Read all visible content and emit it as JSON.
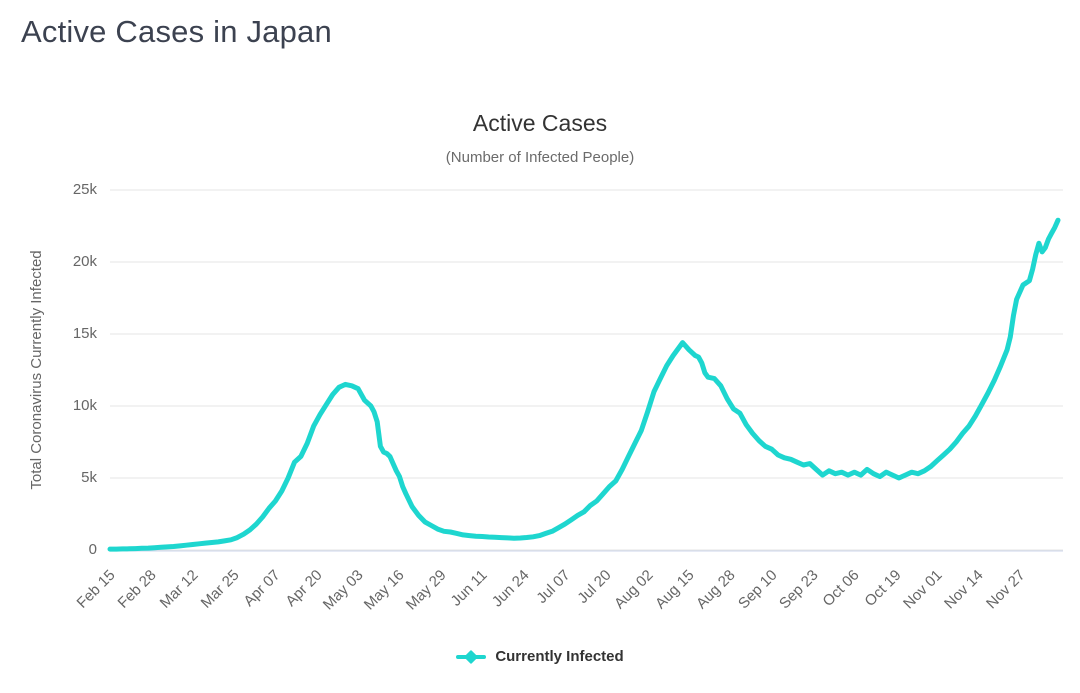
{
  "page": {
    "heading": "Active Cases in Japan"
  },
  "chart_data": {
    "type": "line",
    "title": "Active Cases",
    "subtitle": "(Number of Infected People)",
    "ylabel": "Total Coronavirus Currently Infected",
    "xlabel": "",
    "ylim": [
      0,
      25000
    ],
    "ytick_values": [
      0,
      5000,
      10000,
      15000,
      20000,
      25000
    ],
    "ytick_labels": [
      "0",
      "5k",
      "10k",
      "15k",
      "20k",
      "25k"
    ],
    "xtick_labels": [
      "Feb 15",
      "Feb 28",
      "Mar 12",
      "Mar 25",
      "Apr 07",
      "Apr 20",
      "May 03",
      "May 16",
      "May 29",
      "Jun 11",
      "Jun 24",
      "Jul 07",
      "Jul 20",
      "Aug 02",
      "Aug 15",
      "Aug 28",
      "Sep 10",
      "Sep 23",
      "Oct 06",
      "Oct 19",
      "Nov 01",
      "Nov 14",
      "Nov 27"
    ],
    "xtick_days": [
      0,
      13,
      26,
      39,
      52,
      65,
      78,
      91,
      104,
      117,
      130,
      143,
      156,
      169,
      182,
      195,
      208,
      221,
      234,
      247,
      260,
      273,
      286
    ],
    "x_total_days": 298,
    "grid": "horizontal",
    "legend_position": "bottom",
    "colors": {
      "line": "#1ed6cf",
      "grid": "#e6e6e6",
      "axis_line": "#ccd6eb",
      "tick_text": "#666666"
    },
    "series": [
      {
        "name": "Currently Infected",
        "color": "#1ed6cf",
        "points": [
          [
            "Feb 15",
            0,
            60
          ],
          [
            "Feb 17",
            2,
            65
          ],
          [
            "Feb 19",
            4,
            75
          ],
          [
            "Feb 21",
            6,
            85
          ],
          [
            "Feb 23",
            8,
            100
          ],
          [
            "Feb 25",
            10,
            115
          ],
          [
            "Feb 27",
            12,
            135
          ],
          [
            "Feb 29",
            14,
            160
          ],
          [
            "Mar 02",
            16,
            185
          ],
          [
            "Mar 04",
            18,
            215
          ],
          [
            "Mar 06",
            20,
            245
          ],
          [
            "Mar 08",
            22,
            285
          ],
          [
            "Mar 10",
            24,
            330
          ],
          [
            "Mar 12",
            26,
            380
          ],
          [
            "Mar 14",
            28,
            430
          ],
          [
            "Mar 16",
            30,
            480
          ],
          [
            "Mar 18",
            32,
            520
          ],
          [
            "Mar 20",
            34,
            565
          ],
          [
            "Mar 22",
            36,
            630
          ],
          [
            "Mar 24",
            38,
            710
          ],
          [
            "Mar 26",
            40,
            860
          ],
          [
            "Mar 28",
            42,
            1100
          ],
          [
            "Mar 30",
            44,
            1400
          ],
          [
            "Apr 01",
            46,
            1800
          ],
          [
            "Apr 03",
            48,
            2300
          ],
          [
            "Apr 05",
            50,
            2900
          ],
          [
            "Apr 07",
            52,
            3400
          ],
          [
            "Apr 09",
            54,
            4100
          ],
          [
            "Apr 11",
            56,
            5000
          ],
          [
            "Apr 13",
            58,
            6100
          ],
          [
            "Apr 15",
            60,
            6500
          ],
          [
            "Apr 17",
            62,
            7400
          ],
          [
            "Apr 19",
            64,
            8600
          ],
          [
            "Apr 21",
            66,
            9400
          ],
          [
            "Apr 23",
            68,
            10100
          ],
          [
            "Apr 25",
            70,
            10800
          ],
          [
            "Apr 27",
            72,
            11300
          ],
          [
            "Apr 29",
            74,
            11500
          ],
          [
            "May 01",
            76,
            11400
          ],
          [
            "May 03",
            78,
            11200
          ],
          [
            "May 05",
            80,
            10400
          ],
          [
            "May 07",
            82,
            10000
          ],
          [
            "May 08",
            83,
            9600
          ],
          [
            "May 09",
            84,
            8900
          ],
          [
            "May 10",
            85,
            7200
          ],
          [
            "May 11",
            86,
            6800
          ],
          [
            "May 12",
            87,
            6700
          ],
          [
            "May 13",
            88,
            6500
          ],
          [
            "May 14",
            89,
            6000
          ],
          [
            "May 15",
            90,
            5500
          ],
          [
            "May 16",
            91,
            5100
          ],
          [
            "May 17",
            92,
            4400
          ],
          [
            "May 18",
            93,
            3900
          ],
          [
            "May 20",
            95,
            3000
          ],
          [
            "May 22",
            97,
            2400
          ],
          [
            "May 24",
            99,
            1950
          ],
          [
            "May 26",
            101,
            1700
          ],
          [
            "May 28",
            103,
            1450
          ],
          [
            "May 30",
            105,
            1300
          ],
          [
            "Jun 01",
            107,
            1250
          ],
          [
            "Jun 03",
            109,
            1150
          ],
          [
            "Jun 05",
            111,
            1050
          ],
          [
            "Jun 07",
            113,
            1000
          ],
          [
            "Jun 09",
            115,
            960
          ],
          [
            "Jun 11",
            117,
            940
          ],
          [
            "Jun 13",
            119,
            900
          ],
          [
            "Jun 15",
            121,
            880
          ],
          [
            "Jun 17",
            123,
            860
          ],
          [
            "Jun 19",
            125,
            840
          ],
          [
            "Jun 21",
            127,
            820
          ],
          [
            "Jun 23",
            129,
            830
          ],
          [
            "Jun 25",
            131,
            870
          ],
          [
            "Jun 27",
            133,
            920
          ],
          [
            "Jun 29",
            135,
            1000
          ],
          [
            "Jul 01",
            137,
            1150
          ],
          [
            "Jul 03",
            139,
            1300
          ],
          [
            "Jul 05",
            141,
            1550
          ],
          [
            "Jul 07",
            143,
            1800
          ],
          [
            "Jul 09",
            145,
            2100
          ],
          [
            "Jul 11",
            147,
            2400
          ],
          [
            "Jul 13",
            149,
            2650
          ],
          [
            "Jul 15",
            151,
            3100
          ],
          [
            "Jul 17",
            153,
            3400
          ],
          [
            "Jul 19",
            155,
            3900
          ],
          [
            "Jul 21",
            157,
            4400
          ],
          [
            "Jul 23",
            159,
            4800
          ],
          [
            "Jul 25",
            161,
            5600
          ],
          [
            "Jul 27",
            163,
            6500
          ],
          [
            "Jul 29",
            165,
            7400
          ],
          [
            "Jul 31",
            167,
            8300
          ],
          [
            "Aug 02",
            169,
            9600
          ],
          [
            "Aug 04",
            171,
            11000
          ],
          [
            "Aug 06",
            173,
            11900
          ],
          [
            "Aug 08",
            175,
            12800
          ],
          [
            "Aug 10",
            177,
            13500
          ],
          [
            "Aug 12",
            179,
            14100
          ],
          [
            "Aug 13",
            180,
            14400
          ],
          [
            "Aug 15",
            182,
            13900
          ],
          [
            "Aug 17",
            184,
            13500
          ],
          [
            "Aug 18",
            185,
            13400
          ],
          [
            "Aug 19",
            186,
            13000
          ],
          [
            "Aug 20",
            187,
            12300
          ],
          [
            "Aug 21",
            188,
            12000
          ],
          [
            "Aug 23",
            190,
            11900
          ],
          [
            "Aug 25",
            192,
            11400
          ],
          [
            "Aug 27",
            194,
            10500
          ],
          [
            "Aug 29",
            196,
            9800
          ],
          [
            "Aug 31",
            198,
            9500
          ],
          [
            "Sep 02",
            200,
            8700
          ],
          [
            "Sep 04",
            202,
            8100
          ],
          [
            "Sep 06",
            204,
            7600
          ],
          [
            "Sep 08",
            206,
            7200
          ],
          [
            "Sep 10",
            208,
            7000
          ],
          [
            "Sep 12",
            210,
            6600
          ],
          [
            "Sep 14",
            212,
            6400
          ],
          [
            "Sep 16",
            214,
            6300
          ],
          [
            "Sep 18",
            216,
            6100
          ],
          [
            "Sep 20",
            218,
            5900
          ],
          [
            "Sep 22",
            220,
            6000
          ],
          [
            "Sep 24",
            222,
            5600
          ],
          [
            "Sep 26",
            224,
            5200
          ],
          [
            "Sep 28",
            226,
            5500
          ],
          [
            "Sep 30",
            228,
            5300
          ],
          [
            "Oct 02",
            230,
            5400
          ],
          [
            "Oct 04",
            232,
            5200
          ],
          [
            "Oct 06",
            234,
            5400
          ],
          [
            "Oct 08",
            236,
            5200
          ],
          [
            "Oct 10",
            238,
            5600
          ],
          [
            "Oct 12",
            240,
            5300
          ],
          [
            "Oct 14",
            242,
            5100
          ],
          [
            "Oct 16",
            244,
            5400
          ],
          [
            "Oct 18",
            246,
            5200
          ],
          [
            "Oct 20",
            248,
            5000
          ],
          [
            "Oct 22",
            250,
            5200
          ],
          [
            "Oct 24",
            252,
            5400
          ],
          [
            "Oct 26",
            254,
            5300
          ],
          [
            "Oct 28",
            256,
            5500
          ],
          [
            "Oct 30",
            258,
            5800
          ],
          [
            "Nov 01",
            260,
            6200
          ],
          [
            "Nov 03",
            262,
            6600
          ],
          [
            "Nov 05",
            264,
            7000
          ],
          [
            "Nov 07",
            266,
            7500
          ],
          [
            "Nov 09",
            268,
            8100
          ],
          [
            "Nov 11",
            270,
            8600
          ],
          [
            "Nov 13",
            272,
            9300
          ],
          [
            "Nov 15",
            274,
            10100
          ],
          [
            "Nov 17",
            276,
            10900
          ],
          [
            "Nov 19",
            278,
            11800
          ],
          [
            "Nov 21",
            280,
            12800
          ],
          [
            "Nov 23",
            282,
            13900
          ],
          [
            "Nov 24",
            283,
            14800
          ],
          [
            "Nov 25",
            284,
            16300
          ],
          [
            "Nov 26",
            285,
            17400
          ],
          [
            "Nov 28",
            287,
            18400
          ],
          [
            "Nov 30",
            289,
            18700
          ],
          [
            "Dec 01",
            290,
            19500
          ],
          [
            "Dec 02",
            291,
            20500
          ],
          [
            "Dec 03",
            292,
            21300
          ],
          [
            "Dec 04",
            293,
            20700
          ],
          [
            "Dec 05",
            294,
            21000
          ],
          [
            "Dec 06",
            295,
            21600
          ],
          [
            "Dec 07",
            296,
            22000
          ],
          [
            "Dec 08",
            297,
            22400
          ],
          [
            "Dec 09",
            298,
            22900
          ]
        ]
      }
    ]
  }
}
